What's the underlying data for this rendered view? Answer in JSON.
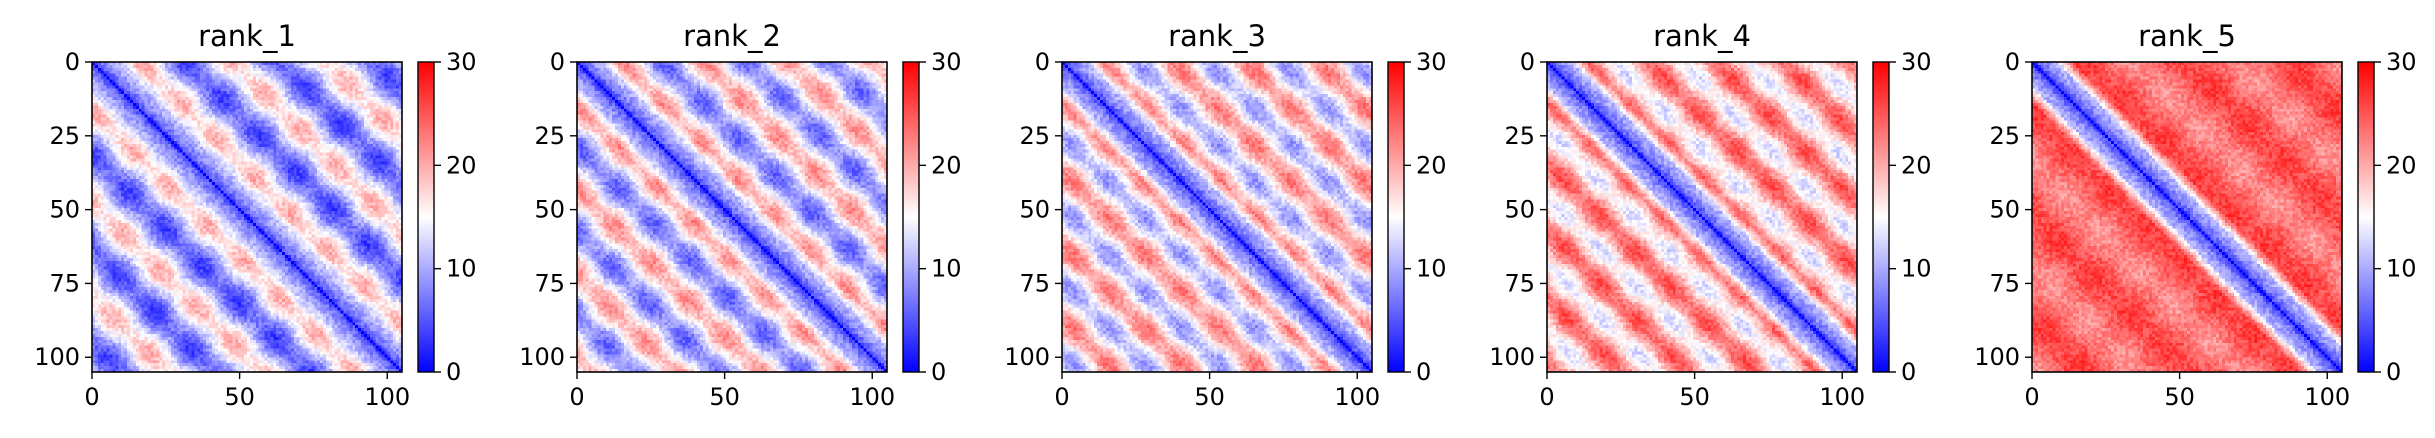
{
  "chart_data": [
    {
      "type": "heatmap",
      "title": "rank_1",
      "matrix_size": 106,
      "xlim": [
        0,
        105
      ],
      "ylim": [
        105,
        0
      ],
      "xticks": [
        0,
        50,
        100
      ],
      "yticks": [
        0,
        25,
        50,
        75,
        100
      ],
      "colorbar": {
        "range": [
          0,
          30
        ],
        "ticks": [
          0,
          10,
          20,
          30
        ],
        "colormap": "bwr"
      },
      "pattern": {
        "period": 32,
        "amplitude": 1.0,
        "background": 13.5
      }
    },
    {
      "type": "heatmap",
      "title": "rank_2",
      "matrix_size": 106,
      "xlim": [
        0,
        105
      ],
      "ylim": [
        105,
        0
      ],
      "xticks": [
        0,
        50,
        100
      ],
      "yticks": [
        0,
        25,
        50,
        75,
        100
      ],
      "colorbar": {
        "range": [
          0,
          30
        ],
        "ticks": [
          0,
          10,
          20,
          30
        ],
        "colormap": "bwr"
      },
      "pattern": {
        "period": 29,
        "amplitude": 1.0,
        "background": 15.5
      }
    },
    {
      "type": "heatmap",
      "title": "rank_3",
      "matrix_size": 106,
      "xlim": [
        0,
        105
      ],
      "ylim": [
        105,
        0
      ],
      "xticks": [
        0,
        50,
        100
      ],
      "yticks": [
        0,
        25,
        50,
        75,
        100
      ],
      "colorbar": {
        "range": [
          0,
          30
        ],
        "ticks": [
          0,
          10,
          20,
          30
        ],
        "colormap": "bwr"
      },
      "pattern": {
        "period": 25,
        "amplitude": 0.9,
        "background": 17.5
      }
    },
    {
      "type": "heatmap",
      "title": "rank_4",
      "matrix_size": 106,
      "xlim": [
        0,
        105
      ],
      "ylim": [
        105,
        0
      ],
      "xticks": [
        0,
        50,
        100
      ],
      "yticks": [
        0,
        25,
        50,
        75,
        100
      ],
      "colorbar": {
        "range": [
          0,
          30
        ],
        "ticks": [
          0,
          10,
          20,
          30
        ],
        "colormap": "bwr"
      },
      "pattern": {
        "period": 23,
        "amplitude": 0.8,
        "background": 20.5
      }
    },
    {
      "type": "heatmap",
      "title": "rank_5",
      "matrix_size": 106,
      "xlim": [
        0,
        105
      ],
      "ylim": [
        105,
        0
      ],
      "xticks": [
        0,
        50,
        100
      ],
      "yticks": [
        0,
        25,
        50,
        75,
        100
      ],
      "colorbar": {
        "range": [
          0,
          30
        ],
        "ticks": [
          0,
          10,
          20,
          30
        ],
        "colormap": "bwr"
      },
      "pattern": {
        "period": 35,
        "amplitude": 0.35,
        "background": 24.5
      }
    }
  ]
}
